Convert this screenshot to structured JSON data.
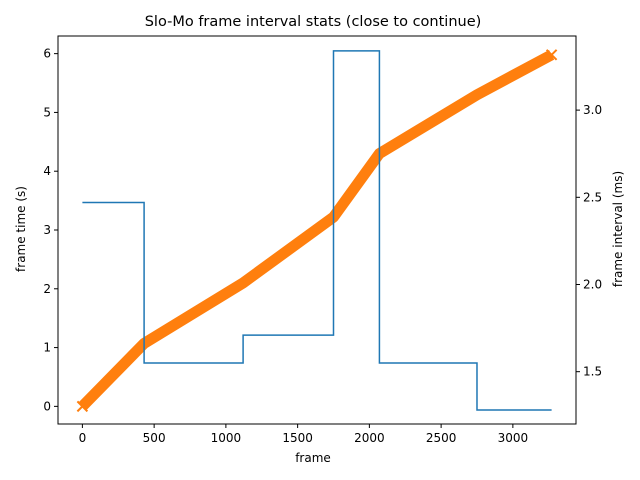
{
  "chart_data": {
    "type": "line",
    "title": "Slo-Mo frame interval stats (close to continue)",
    "xlabel": "frame",
    "ylabel_left": "frame time (s)",
    "ylabel_right": "frame interval (ms)",
    "xlim": [
      -170,
      3440
    ],
    "ylim_left": [
      -0.3,
      6.3
    ],
    "ylim_right": [
      1.2,
      3.425
    ],
    "x_ticks": [
      0,
      500,
      1000,
      1500,
      2000,
      2500,
      3000
    ],
    "y_ticks_left": [
      0,
      1,
      2,
      3,
      4,
      5,
      6
    ],
    "y_ticks_right": [
      1.5,
      2.0,
      2.5,
      3.0
    ],
    "y_tick_labels_right": [
      "1.5",
      "2.0",
      "2.5",
      "3.0"
    ],
    "grid": false,
    "legend": "none",
    "series": [
      {
        "axis": "left",
        "color": "#ff7f0e",
        "style": "thick-line",
        "points": [
          [
            0,
            0.0
          ],
          [
            430,
            1.07
          ],
          [
            1120,
            2.1
          ],
          [
            1750,
            3.22
          ],
          [
            2070,
            4.3
          ],
          [
            2750,
            5.3
          ],
          [
            3270,
            5.98
          ]
        ]
      },
      {
        "axis": "right",
        "color": "#1f77b4",
        "style": "step",
        "points": [
          [
            0,
            2.47
          ],
          [
            430,
            2.47
          ],
          [
            430,
            1.55
          ],
          [
            1120,
            1.55
          ],
          [
            1120,
            1.71
          ],
          [
            1750,
            1.71
          ],
          [
            1750,
            3.34
          ],
          [
            2070,
            3.34
          ],
          [
            2070,
            1.55
          ],
          [
            2750,
            1.55
          ],
          [
            2750,
            1.28
          ],
          [
            3270,
            1.28
          ]
        ]
      }
    ]
  }
}
